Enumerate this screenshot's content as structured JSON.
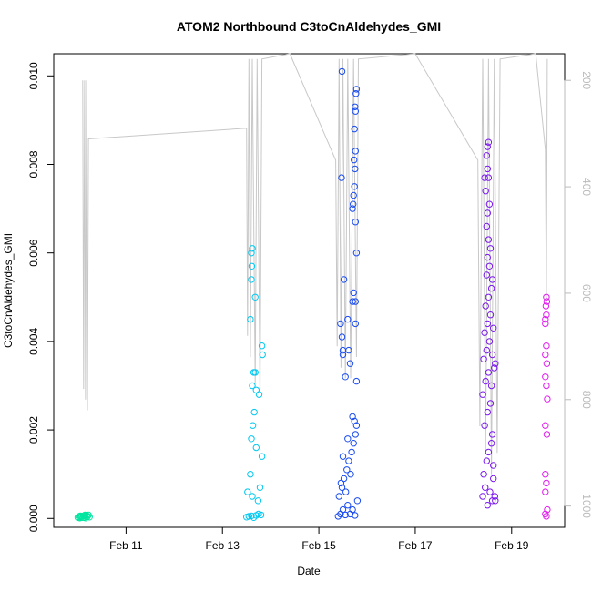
{
  "chart_data": {
    "type": "scatter",
    "title": "ATOM2 Northbound C3toCnAldehydes_GMI",
    "xlabel": "Date",
    "ylabel": "C3toCnAldehydes_GMI",
    "x_ticks": [
      "Feb 11",
      "Feb 13",
      "Feb 15",
      "Feb 17",
      "Feb 19"
    ],
    "x_tick_days": [
      11,
      13,
      15,
      17,
      19
    ],
    "xlim_days": [
      9.5,
      20.1
    ],
    "y_ticks": [
      "0.000",
      "0.002",
      "0.004",
      "0.006",
      "0.008",
      "0.010"
    ],
    "y_tick_values": [
      0,
      0.002,
      0.004,
      0.006,
      0.008,
      0.01
    ],
    "ylim": [
      -0.0002,
      0.0105
    ],
    "y2_ticks": [
      "200",
      "400",
      "600",
      "800",
      "1000"
    ],
    "y2_tick_values": [
      200,
      400,
      600,
      800,
      1000
    ],
    "y2lim": [
      1040,
      150
    ],
    "colors": {
      "axis": "#000000",
      "secondary_axis": "#bbbbbb",
      "altitude_line": "#c8c8c8",
      "series": [
        "#00e5a0",
        "#00c8f0",
        "#1a4cf0",
        "#7a18ee",
        "#e21ef0"
      ]
    },
    "altitude_series": [
      {
        "x": 10.1,
        "y": 200
      },
      {
        "x": 10.12,
        "y": 780
      },
      {
        "x": 10.14,
        "y": 200
      },
      {
        "x": 10.16,
        "y": 800
      },
      {
        "x": 10.18,
        "y": 200
      },
      {
        "x": 10.2,
        "y": 820
      },
      {
        "x": 10.22,
        "y": 310
      },
      {
        "x": 13.5,
        "y": 290
      },
      {
        "x": 13.52,
        "y": 680
      },
      {
        "x": 13.55,
        "y": 160
      },
      {
        "x": 13.58,
        "y": 720
      },
      {
        "x": 13.62,
        "y": 160
      },
      {
        "x": 13.68,
        "y": 770
      },
      {
        "x": 13.72,
        "y": 160
      },
      {
        "x": 13.78,
        "y": 800
      },
      {
        "x": 13.82,
        "y": 160
      },
      {
        "x": 14.4,
        "y": 150
      },
      {
        "x": 15.35,
        "y": 350
      },
      {
        "x": 15.38,
        "y": 700
      },
      {
        "x": 15.42,
        "y": 160
      },
      {
        "x": 15.46,
        "y": 740
      },
      {
        "x": 15.5,
        "y": 160
      },
      {
        "x": 15.55,
        "y": 760
      },
      {
        "x": 15.6,
        "y": 160
      },
      {
        "x": 15.66,
        "y": 760
      },
      {
        "x": 15.72,
        "y": 160
      },
      {
        "x": 15.78,
        "y": 720
      },
      {
        "x": 15.82,
        "y": 160
      },
      {
        "x": 17.0,
        "y": 150
      },
      {
        "x": 18.3,
        "y": 350
      },
      {
        "x": 18.34,
        "y": 850
      },
      {
        "x": 18.4,
        "y": 160
      },
      {
        "x": 18.46,
        "y": 900
      },
      {
        "x": 18.52,
        "y": 160
      },
      {
        "x": 18.58,
        "y": 940
      },
      {
        "x": 18.64,
        "y": 160
      },
      {
        "x": 18.7,
        "y": 900
      },
      {
        "x": 18.76,
        "y": 160
      },
      {
        "x": 19.5,
        "y": 150
      },
      {
        "x": 19.7,
        "y": 330
      },
      {
        "x": 19.72,
        "y": 620
      },
      {
        "x": 19.74,
        "y": 160
      }
    ],
    "series": [
      {
        "points": [
          [
            10.0,
            2e-05
          ],
          [
            10.02,
            4e-05
          ],
          [
            10.04,
            1e-05
          ],
          [
            10.06,
            3e-05
          ],
          [
            10.08,
            5e-05
          ],
          [
            10.1,
            2e-05
          ],
          [
            10.12,
            6e-05
          ],
          [
            10.14,
            3e-05
          ],
          [
            10.16,
            1e-05
          ],
          [
            10.18,
            7e-05
          ],
          [
            10.2,
            4e-05
          ],
          [
            10.22,
            8e-05
          ],
          [
            10.24,
            3e-05
          ],
          [
            10.05,
            6e-05
          ],
          [
            10.15,
            8e-05
          ]
        ]
      },
      {
        "points": [
          [
            13.5,
            3e-05
          ],
          [
            13.55,
            5e-05
          ],
          [
            13.6,
            6e-05
          ],
          [
            13.65,
            2e-05
          ],
          [
            13.7,
            7e-05
          ],
          [
            13.75,
            0.0001
          ],
          [
            13.8,
            8e-05
          ],
          [
            13.52,
            0.0006
          ],
          [
            13.58,
            0.001
          ],
          [
            13.62,
            0.0005
          ],
          [
            13.7,
            0.0016
          ],
          [
            13.74,
            0.0004
          ],
          [
            13.78,
            0.0007
          ],
          [
            13.82,
            0.0014
          ],
          [
            13.6,
            0.0018
          ],
          [
            13.63,
            0.0021
          ],
          [
            13.66,
            0.0024
          ],
          [
            13.62,
            0.003
          ],
          [
            13.7,
            0.0029
          ],
          [
            13.76,
            0.0028
          ],
          [
            13.58,
            0.0045
          ],
          [
            13.6,
            0.0054
          ],
          [
            13.61,
            0.0057
          ],
          [
            13.6,
            0.006
          ],
          [
            13.62,
            0.0061
          ],
          [
            13.68,
            0.005
          ],
          [
            13.82,
            0.0039
          ],
          [
            13.83,
            0.0037
          ],
          [
            13.65,
            0.0033
          ],
          [
            13.68,
            0.0033
          ]
        ]
      },
      {
        "points": [
          [
            15.4,
            5e-05
          ],
          [
            15.45,
            0.0001
          ],
          [
            15.5,
            0.0002
          ],
          [
            15.55,
            8e-05
          ],
          [
            15.6,
            0.0003
          ],
          [
            15.65,
            0.0001
          ],
          [
            15.7,
            0.0002
          ],
          [
            15.75,
            7e-05
          ],
          [
            15.8,
            0.0004
          ],
          [
            15.42,
            0.0005
          ],
          [
            15.48,
            0.0007
          ],
          [
            15.52,
            0.0009
          ],
          [
            15.58,
            0.0011
          ],
          [
            15.62,
            0.0013
          ],
          [
            15.68,
            0.0015
          ],
          [
            15.72,
            0.0017
          ],
          [
            15.76,
            0.0019
          ],
          [
            15.46,
            0.0008
          ],
          [
            15.56,
            0.0006
          ],
          [
            15.66,
            0.001
          ],
          [
            15.78,
            0.0021
          ],
          [
            15.74,
            0.0022
          ],
          [
            15.7,
            0.0023
          ],
          [
            15.5,
            0.0014
          ],
          [
            15.6,
            0.0018
          ],
          [
            15.45,
            0.0044
          ],
          [
            15.48,
            0.0041
          ],
          [
            15.5,
            0.0037
          ],
          [
            15.55,
            0.0032
          ],
          [
            15.6,
            0.0045
          ],
          [
            15.62,
            0.0038
          ],
          [
            15.65,
            0.0035
          ],
          [
            15.7,
            0.0049
          ],
          [
            15.72,
            0.0051
          ],
          [
            15.76,
            0.0044
          ],
          [
            15.78,
            0.0031
          ],
          [
            15.47,
            0.0077
          ],
          [
            15.52,
            0.0054
          ],
          [
            15.7,
            0.007
          ],
          [
            15.72,
            0.0073
          ],
          [
            15.74,
            0.0075
          ],
          [
            15.76,
            0.0067
          ],
          [
            15.78,
            0.006
          ],
          [
            15.75,
            0.0079
          ],
          [
            15.76,
            0.0083
          ],
          [
            15.74,
            0.0088
          ],
          [
            15.76,
            0.0092
          ],
          [
            15.75,
            0.0093
          ],
          [
            15.77,
            0.0096
          ],
          [
            15.78,
            0.0097
          ],
          [
            15.48,
            0.0101
          ],
          [
            15.73,
            0.0081
          ],
          [
            15.71,
            0.0071
          ],
          [
            15.76,
            0.0049
          ],
          [
            15.5,
            0.0038
          ]
        ]
      },
      {
        "points": [
          [
            18.4,
            0.0005
          ],
          [
            18.45,
            0.0007
          ],
          [
            18.5,
            0.0003
          ],
          [
            18.55,
            0.0006
          ],
          [
            18.6,
            0.0004
          ],
          [
            18.65,
            0.0005
          ],
          [
            18.42,
            0.001
          ],
          [
            18.48,
            0.0013
          ],
          [
            18.52,
            0.0015
          ],
          [
            18.58,
            0.0017
          ],
          [
            18.62,
            0.0012
          ],
          [
            18.44,
            0.0021
          ],
          [
            18.5,
            0.0024
          ],
          [
            18.56,
            0.0026
          ],
          [
            18.6,
            0.0019
          ],
          [
            18.4,
            0.0028
          ],
          [
            18.46,
            0.0031
          ],
          [
            18.52,
            0.0033
          ],
          [
            18.58,
            0.003
          ],
          [
            18.64,
            0.0034
          ],
          [
            18.42,
            0.0036
          ],
          [
            18.48,
            0.0038
          ],
          [
            18.54,
            0.004
          ],
          [
            18.6,
            0.0037
          ],
          [
            18.66,
            0.0035
          ],
          [
            18.44,
            0.0042
          ],
          [
            18.5,
            0.0044
          ],
          [
            18.56,
            0.0046
          ],
          [
            18.62,
            0.0043
          ],
          [
            18.46,
            0.0048
          ],
          [
            18.52,
            0.005
          ],
          [
            18.58,
            0.0052
          ],
          [
            18.48,
            0.0055
          ],
          [
            18.54,
            0.0057
          ],
          [
            18.6,
            0.0054
          ],
          [
            18.5,
            0.0059
          ],
          [
            18.56,
            0.0061
          ],
          [
            18.52,
            0.0063
          ],
          [
            18.48,
            0.0066
          ],
          [
            18.5,
            0.0069
          ],
          [
            18.54,
            0.0071
          ],
          [
            18.46,
            0.0074
          ],
          [
            18.52,
            0.0077
          ],
          [
            18.5,
            0.0079
          ],
          [
            18.48,
            0.0082
          ],
          [
            18.5,
            0.0084
          ],
          [
            18.52,
            0.0085
          ],
          [
            18.44,
            0.0077
          ],
          [
            18.66,
            0.0004
          ],
          [
            18.62,
            0.0009
          ]
        ]
      },
      {
        "points": [
          [
            19.7,
            0.0001
          ],
          [
            19.72,
            5e-05
          ],
          [
            19.74,
            0.0002
          ],
          [
            19.7,
            0.0006
          ],
          [
            19.72,
            0.0008
          ],
          [
            19.7,
            0.001
          ],
          [
            19.73,
            0.0019
          ],
          [
            19.7,
            0.0021
          ],
          [
            19.74,
            0.0027
          ],
          [
            19.72,
            0.003
          ],
          [
            19.7,
            0.0032
          ],
          [
            19.73,
            0.0035
          ],
          [
            19.7,
            0.0037
          ],
          [
            19.72,
            0.0039
          ],
          [
            19.7,
            0.0044
          ],
          [
            19.72,
            0.0046
          ],
          [
            19.71,
            0.0048
          ],
          [
            19.73,
            0.0049
          ],
          [
            19.72,
            0.005
          ],
          [
            19.7,
            0.0045
          ]
        ]
      }
    ]
  }
}
